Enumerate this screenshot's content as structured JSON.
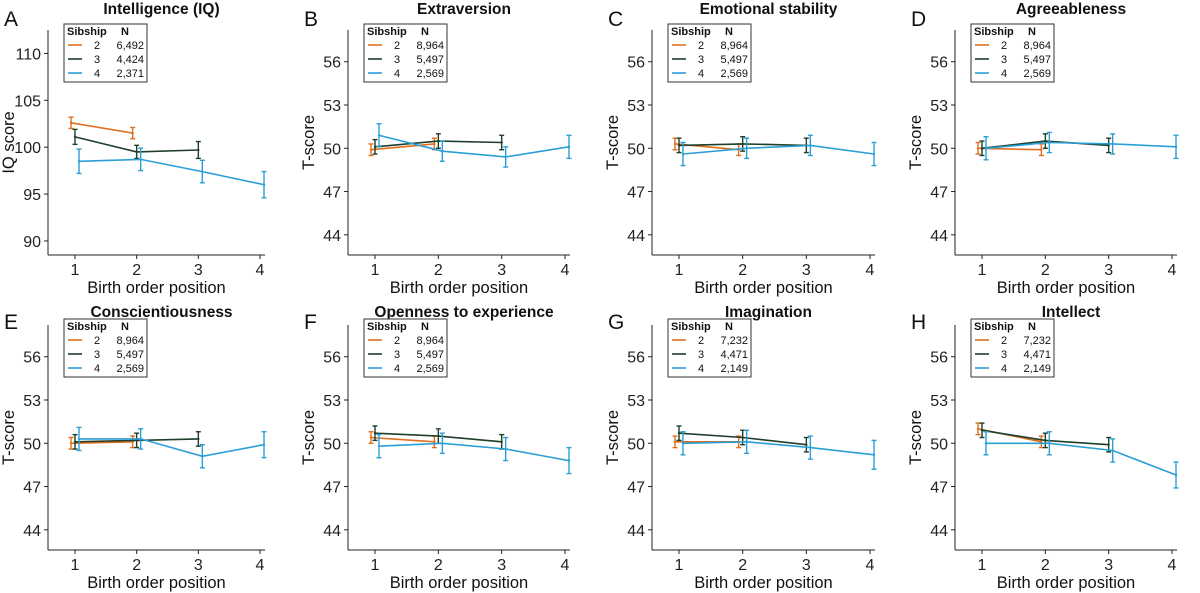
{
  "figure": {
    "xlabel": "Birth order position",
    "legend_header": {
      "sibship": "Sibship",
      "n": "N"
    },
    "colors": {
      "2": "#e07020",
      "3": "#1e3f2a",
      "4": "#2a9fd6"
    }
  },
  "chart_data": [
    {
      "letter": "A",
      "title": "Intelligence (IQ)",
      "type": "line",
      "xlabel": "Birth order position",
      "ylabel": "IQ score",
      "x_ticks": [
        1,
        2,
        3,
        4
      ],
      "y_ticks": [
        90,
        95,
        100,
        105,
        110
      ],
      "ylim": [
        88.5,
        112.5
      ],
      "legend": [
        {
          "sibship": "2",
          "n": "6,492"
        },
        {
          "sibship": "3",
          "n": "4,424"
        },
        {
          "sibship": "4",
          "n": "2,371"
        }
      ],
      "series": [
        {
          "name": "2",
          "color": "#e07020",
          "x": [
            1,
            2
          ],
          "values": [
            102.6,
            101.5
          ],
          "lower": [
            102.0,
            100.9
          ],
          "upper": [
            103.2,
            102.1
          ]
        },
        {
          "name": "3",
          "color": "#1e3f2a",
          "x": [
            1,
            2,
            3
          ],
          "values": [
            101.1,
            99.5,
            99.7
          ],
          "lower": [
            100.3,
            98.8,
            98.8
          ],
          "upper": [
            101.9,
            100.2,
            100.6
          ]
        },
        {
          "name": "4",
          "color": "#2a9fd6",
          "x": [
            1,
            2,
            3,
            4
          ],
          "values": [
            98.5,
            98.7,
            97.4,
            96.0
          ],
          "lower": [
            97.2,
            97.5,
            96.2,
            94.6
          ],
          "upper": [
            99.8,
            99.9,
            98.6,
            97.4
          ]
        }
      ]
    },
    {
      "letter": "B",
      "title": "Extraversion",
      "type": "line",
      "xlabel": "Birth order position",
      "ylabel": "T-score",
      "x_ticks": [
        1,
        2,
        3,
        4
      ],
      "y_ticks": [
        44,
        47,
        50,
        53,
        56
      ],
      "ylim": [
        42.6,
        58.2
      ],
      "legend": [
        {
          "sibship": "2",
          "n": "8,964"
        },
        {
          "sibship": "3",
          "n": "5,497"
        },
        {
          "sibship": "4",
          "n": "2,569"
        }
      ],
      "series": [
        {
          "name": "2",
          "color": "#e07020",
          "x": [
            1,
            2
          ],
          "values": [
            49.9,
            50.3
          ],
          "lower": [
            49.5,
            49.9
          ],
          "upper": [
            50.3,
            50.7
          ]
        },
        {
          "name": "3",
          "color": "#1e3f2a",
          "x": [
            1,
            2,
            3
          ],
          "values": [
            50.1,
            50.5,
            50.4
          ],
          "lower": [
            49.6,
            50.0,
            49.9
          ],
          "upper": [
            50.6,
            51.0,
            50.9
          ]
        },
        {
          "name": "4",
          "color": "#2a9fd6",
          "x": [
            1,
            2,
            3,
            4
          ],
          "values": [
            50.9,
            49.8,
            49.4,
            50.1
          ],
          "lower": [
            50.1,
            49.1,
            48.7,
            49.3
          ],
          "upper": [
            51.7,
            50.5,
            50.1,
            50.9
          ]
        }
      ]
    },
    {
      "letter": "C",
      "title": "Emotional stability",
      "type": "line",
      "xlabel": "Birth order position",
      "ylabel": "T-score",
      "x_ticks": [
        1,
        2,
        3,
        4
      ],
      "y_ticks": [
        44,
        47,
        50,
        53,
        56
      ],
      "ylim": [
        42.6,
        58.2
      ],
      "legend": [
        {
          "sibship": "2",
          "n": "8,964"
        },
        {
          "sibship": "3",
          "n": "5,497"
        },
        {
          "sibship": "4",
          "n": "2,569"
        }
      ],
      "series": [
        {
          "name": "2",
          "color": "#e07020",
          "x": [
            1,
            2
          ],
          "values": [
            50.3,
            49.9
          ],
          "lower": [
            49.9,
            49.5
          ],
          "upper": [
            50.7,
            50.3
          ]
        },
        {
          "name": "3",
          "color": "#1e3f2a",
          "x": [
            1,
            2,
            3
          ],
          "values": [
            50.2,
            50.3,
            50.2
          ],
          "lower": [
            49.7,
            49.8,
            49.7
          ],
          "upper": [
            50.7,
            50.8,
            50.7
          ]
        },
        {
          "name": "4",
          "color": "#2a9fd6",
          "x": [
            1,
            2,
            3,
            4
          ],
          "values": [
            49.6,
            50.0,
            50.2,
            49.6
          ],
          "lower": [
            48.8,
            49.3,
            49.5,
            48.8
          ],
          "upper": [
            50.4,
            50.7,
            50.9,
            50.4
          ]
        }
      ]
    },
    {
      "letter": "D",
      "title": "Agreeableness",
      "type": "line",
      "xlabel": "Birth order position",
      "ylabel": "T-score",
      "x_ticks": [
        1,
        2,
        3,
        4
      ],
      "y_ticks": [
        44,
        47,
        50,
        53,
        56
      ],
      "ylim": [
        42.6,
        58.2
      ],
      "legend": [
        {
          "sibship": "2",
          "n": "8,964"
        },
        {
          "sibship": "3",
          "n": "5,497"
        },
        {
          "sibship": "4",
          "n": "2,569"
        }
      ],
      "series": [
        {
          "name": "2",
          "color": "#e07020",
          "x": [
            1,
            2
          ],
          "values": [
            50.0,
            49.9
          ],
          "lower": [
            49.6,
            49.5
          ],
          "upper": [
            50.4,
            50.3
          ]
        },
        {
          "name": "3",
          "color": "#1e3f2a",
          "x": [
            1,
            2,
            3
          ],
          "values": [
            50.0,
            50.5,
            50.2
          ],
          "lower": [
            49.5,
            50.0,
            49.7
          ],
          "upper": [
            50.5,
            51.0,
            50.7
          ]
        },
        {
          "name": "4",
          "color": "#2a9fd6",
          "x": [
            1,
            2,
            3,
            4
          ],
          "values": [
            50.0,
            50.4,
            50.3,
            50.1
          ],
          "lower": [
            49.2,
            49.7,
            49.6,
            49.3
          ],
          "upper": [
            50.8,
            51.1,
            51.0,
            50.9
          ]
        }
      ]
    },
    {
      "letter": "E",
      "title": "Conscientiousness",
      "type": "line",
      "xlabel": "Birth order position",
      "ylabel": "T-score",
      "x_ticks": [
        1,
        2,
        3,
        4
      ],
      "y_ticks": [
        44,
        47,
        50,
        53,
        56
      ],
      "ylim": [
        42.6,
        58.2
      ],
      "legend": [
        {
          "sibship": "2",
          "n": "8,964"
        },
        {
          "sibship": "3",
          "n": "5,497"
        },
        {
          "sibship": "4",
          "n": "2,569"
        }
      ],
      "series": [
        {
          "name": "2",
          "color": "#e07020",
          "x": [
            1,
            2
          ],
          "values": [
            50.0,
            50.1
          ],
          "lower": [
            49.6,
            49.7
          ],
          "upper": [
            50.4,
            50.5
          ]
        },
        {
          "name": "3",
          "color": "#1e3f2a",
          "x": [
            1,
            2,
            3
          ],
          "values": [
            50.1,
            50.2,
            50.3
          ],
          "lower": [
            49.6,
            49.7,
            49.8
          ],
          "upper": [
            50.6,
            50.7,
            50.8
          ]
        },
        {
          "name": "4",
          "color": "#2a9fd6",
          "x": [
            1,
            2,
            3,
            4
          ],
          "values": [
            50.3,
            50.3,
            49.1,
            49.9
          ],
          "lower": [
            49.5,
            49.6,
            48.3,
            49.0
          ],
          "upper": [
            51.1,
            51.0,
            49.9,
            50.8
          ]
        }
      ]
    },
    {
      "letter": "F",
      "title": "Openness to experience",
      "type": "line",
      "xlabel": "Birth order position",
      "ylabel": "T-score",
      "x_ticks": [
        1,
        2,
        3,
        4
      ],
      "y_ticks": [
        44,
        47,
        50,
        53,
        56
      ],
      "ylim": [
        42.6,
        58.2
      ],
      "legend": [
        {
          "sibship": "2",
          "n": "8,964"
        },
        {
          "sibship": "3",
          "n": "5,497"
        },
        {
          "sibship": "4",
          "n": "2,569"
        }
      ],
      "series": [
        {
          "name": "2",
          "color": "#e07020",
          "x": [
            1,
            2
          ],
          "values": [
            50.4,
            50.1
          ],
          "lower": [
            50.0,
            49.7
          ],
          "upper": [
            50.8,
            50.5
          ]
        },
        {
          "name": "3",
          "color": "#1e3f2a",
          "x": [
            1,
            2,
            3
          ],
          "values": [
            50.7,
            50.5,
            50.1
          ],
          "lower": [
            50.2,
            50.0,
            49.6
          ],
          "upper": [
            51.2,
            51.0,
            50.6
          ]
        },
        {
          "name": "4",
          "color": "#2a9fd6",
          "x": [
            1,
            2,
            3,
            4
          ],
          "values": [
            49.8,
            50.0,
            49.6,
            48.8
          ],
          "lower": [
            49.0,
            49.3,
            48.8,
            47.9
          ],
          "upper": [
            50.6,
            50.7,
            50.4,
            49.7
          ]
        }
      ]
    },
    {
      "letter": "G",
      "title": "Imagination",
      "type": "line",
      "xlabel": "Birth order position",
      "ylabel": "T-score",
      "x_ticks": [
        1,
        2,
        3,
        4
      ],
      "y_ticks": [
        44,
        47,
        50,
        53,
        56
      ],
      "ylim": [
        42.6,
        58.2
      ],
      "legend": [
        {
          "sibship": "2",
          "n": "7,232"
        },
        {
          "sibship": "3",
          "n": "4,471"
        },
        {
          "sibship": "4",
          "n": "2,149"
        }
      ],
      "series": [
        {
          "name": "2",
          "color": "#e07020",
          "x": [
            1,
            2
          ],
          "values": [
            50.1,
            50.1
          ],
          "lower": [
            49.7,
            49.7
          ],
          "upper": [
            50.5,
            50.5
          ]
        },
        {
          "name": "3",
          "color": "#1e3f2a",
          "x": [
            1,
            2,
            3
          ],
          "values": [
            50.7,
            50.4,
            49.9
          ],
          "lower": [
            50.2,
            49.9,
            49.4
          ],
          "upper": [
            51.2,
            50.9,
            50.4
          ]
        },
        {
          "name": "4",
          "color": "#2a9fd6",
          "x": [
            1,
            2,
            3,
            4
          ],
          "values": [
            50.0,
            50.1,
            49.7,
            49.2
          ],
          "lower": [
            49.2,
            49.3,
            48.9,
            48.2
          ],
          "upper": [
            50.8,
            50.9,
            50.5,
            50.2
          ]
        }
      ]
    },
    {
      "letter": "H",
      "title": "Intellect",
      "type": "line",
      "xlabel": "Birth order position",
      "ylabel": "T-score",
      "x_ticks": [
        1,
        2,
        3,
        4
      ],
      "y_ticks": [
        44,
        47,
        50,
        53,
        56
      ],
      "ylim": [
        42.6,
        58.2
      ],
      "legend": [
        {
          "sibship": "2",
          "n": "7,232"
        },
        {
          "sibship": "3",
          "n": "4,471"
        },
        {
          "sibship": "4",
          "n": "2,149"
        }
      ],
      "series": [
        {
          "name": "2",
          "color": "#e07020",
          "x": [
            1,
            2
          ],
          "values": [
            51.0,
            50.1
          ],
          "lower": [
            50.6,
            49.7
          ],
          "upper": [
            51.4,
            50.5
          ]
        },
        {
          "name": "3",
          "color": "#1e3f2a",
          "x": [
            1,
            2,
            3
          ],
          "values": [
            50.9,
            50.2,
            49.9
          ],
          "lower": [
            50.4,
            49.7,
            49.4
          ],
          "upper": [
            51.4,
            50.7,
            50.4
          ]
        },
        {
          "name": "4",
          "color": "#2a9fd6",
          "x": [
            1,
            2,
            3,
            4
          ],
          "values": [
            50.0,
            50.0,
            49.5,
            47.8
          ],
          "lower": [
            49.2,
            49.2,
            48.7,
            46.9
          ],
          "upper": [
            50.8,
            50.8,
            50.3,
            48.7
          ]
        }
      ]
    }
  ]
}
